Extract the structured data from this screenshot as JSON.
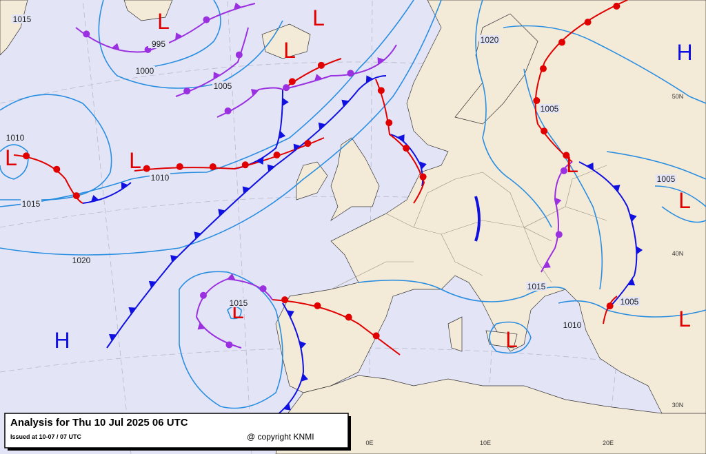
{
  "title": "Analysis for Thu 10 Jul 2025 06 UTC",
  "issued": "Issued at 10-07 / 07 UTC",
  "copyright": "@ copyright KNMI",
  "pressure_centers": [
    "L",
    "L",
    "L",
    "H",
    "L",
    "L",
    "L",
    "L",
    "L",
    "L",
    "L",
    "H"
  ],
  "isobar_labels": [
    "1015",
    "995",
    "1000",
    "1005",
    "1010",
    "1010",
    "1015",
    "1020",
    "1015",
    "1020",
    "1005",
    "1005",
    "1015",
    "1010",
    "1005"
  ],
  "grid_labels": [
    "50N",
    "40N",
    "30N",
    "0E",
    "10E",
    "20E"
  ]
}
